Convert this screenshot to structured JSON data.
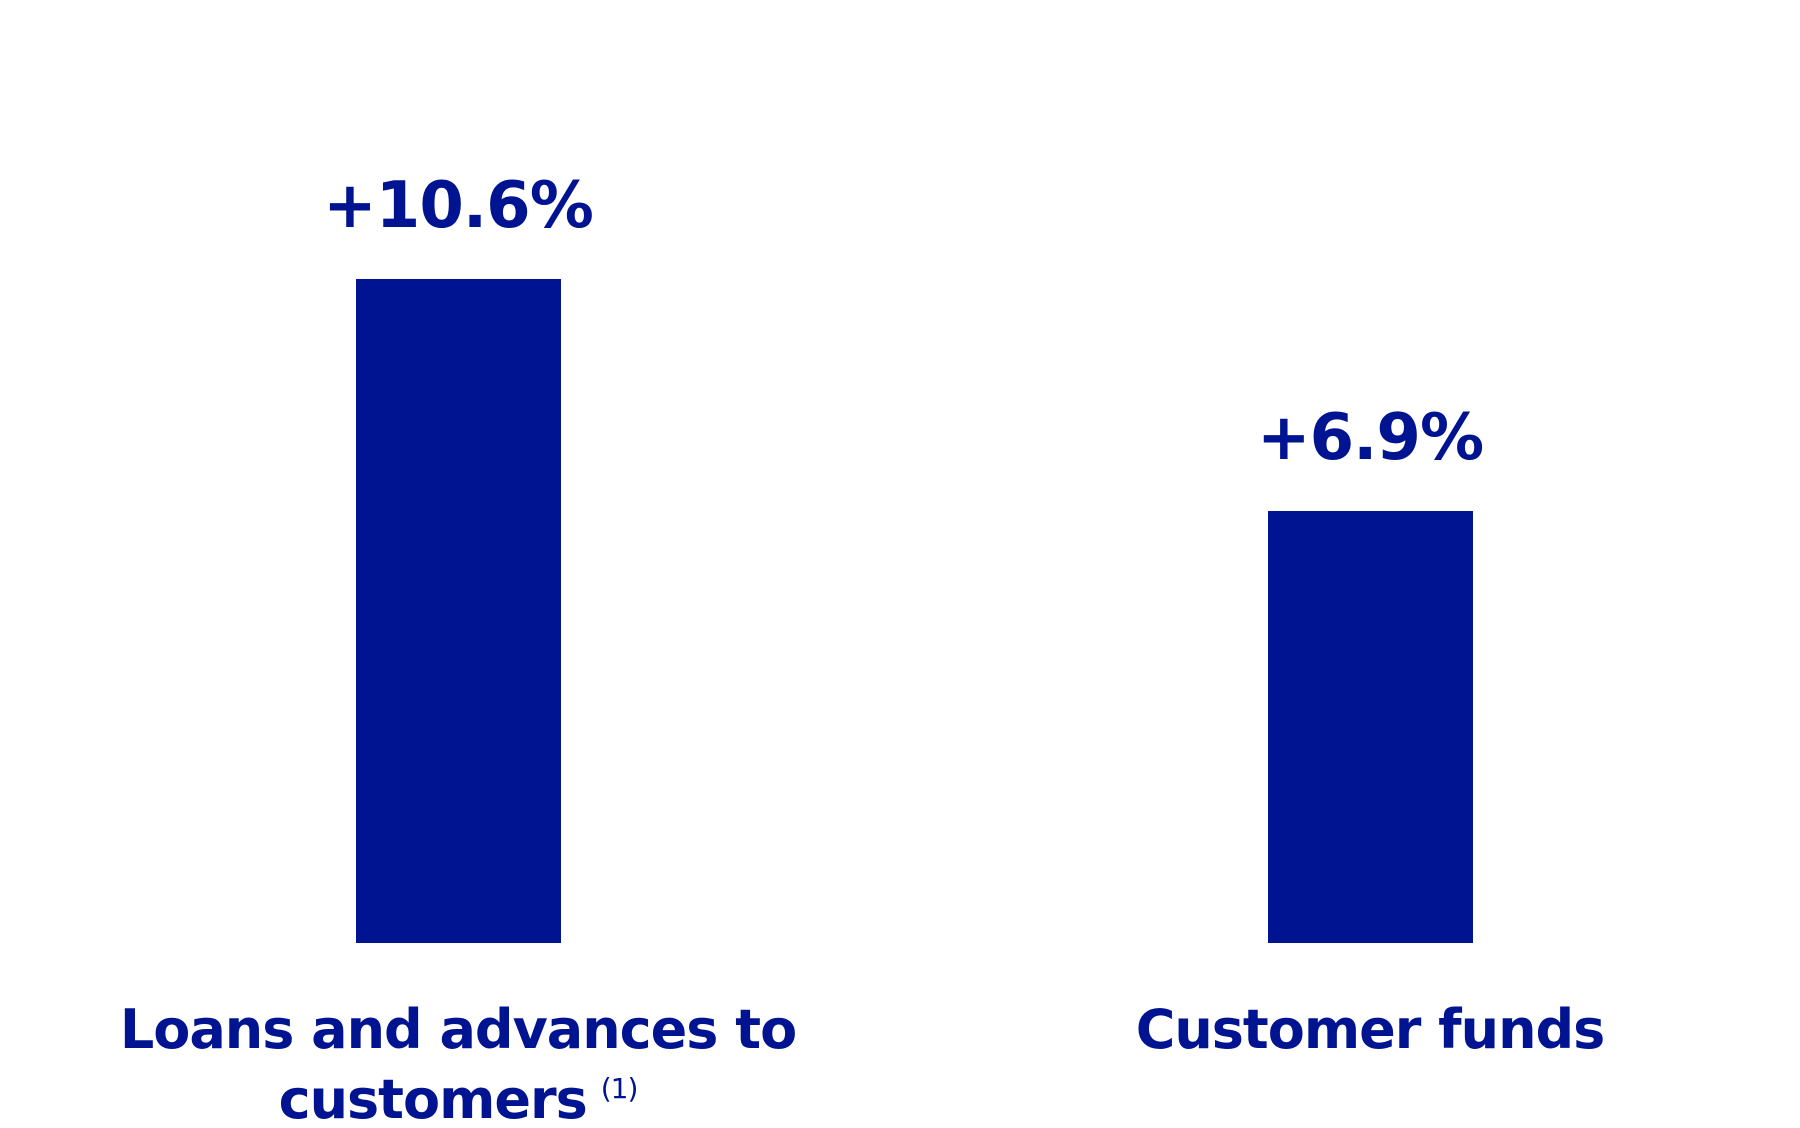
{
  "chart_data": {
    "type": "bar",
    "categories": [
      "Loans and advances to customers",
      "Customer funds"
    ],
    "footnote_marks": [
      "(1)",
      null
    ],
    "values": [
      10.6,
      6.9
    ],
    "value_labels": [
      "+10.6%",
      "+6.9%"
    ],
    "color": "#001391"
  }
}
